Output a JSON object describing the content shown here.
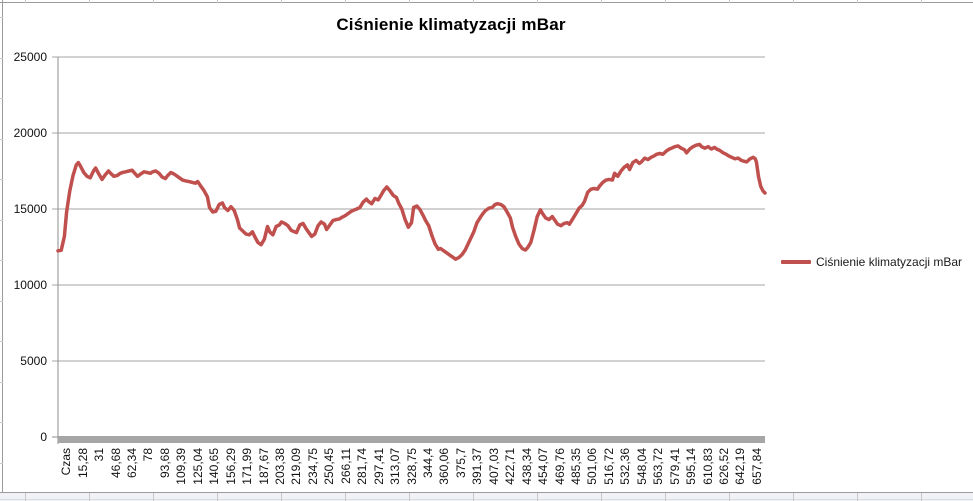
{
  "chart": {
    "title": "Ciśnienie klimatyzacji mBar",
    "legend_label": "Ciśnienie klimatyzacji mBar",
    "series_color": "#C0504D",
    "gridline_color": "#A6A6A6",
    "axis_color": "#8C8C8C",
    "axis_bar_color": "#A6A6A6"
  },
  "chart_data": {
    "type": "line",
    "title": "Ciśnienie klimatyzacji mBar",
    "xlabel": "",
    "ylabel": "",
    "grid": "horizontal",
    "legend_position": "right",
    "legend": [
      "Ciśnienie klimatyzacji mBar"
    ],
    "y_axis": {
      "min": 0,
      "max": 25000,
      "tick_interval": 5000,
      "ticks": [
        0,
        5000,
        10000,
        15000,
        20000,
        25000
      ]
    },
    "x_axis": {
      "tick_labels": [
        "Czas",
        "15,28",
        "31",
        "46,68",
        "62,34",
        "78",
        "93,68",
        "109,39",
        "125,04",
        "140,65",
        "156,29",
        "171,99",
        "187,67",
        "203,38",
        "219,09",
        "234,75",
        "250,45",
        "266,11",
        "281,74",
        "297,41",
        "313,07",
        "328,75",
        "344,4",
        "360,06",
        "375,7",
        "391,37",
        "407,03",
        "422,71",
        "438,34",
        "454,07",
        "469,76",
        "485,35",
        "501,06",
        "516,72",
        "532,36",
        "548,04",
        "563,72",
        "579,41",
        "595,14",
        "610,83",
        "626,52",
        "642,19",
        "657,84"
      ],
      "range": [
        0,
        658
      ]
    },
    "series": [
      {
        "name": "Ciśnienie klimatyzacji mBar",
        "color": "#C0504D",
        "points_time_value": [
          [
            0,
            12250
          ],
          [
            3,
            12280
          ],
          [
            6,
            13200
          ],
          [
            8,
            14800
          ],
          [
            11,
            16200
          ],
          [
            14,
            17200
          ],
          [
            17,
            17900
          ],
          [
            19,
            18050
          ],
          [
            21,
            17800
          ],
          [
            24,
            17400
          ],
          [
            27,
            17150
          ],
          [
            30,
            17050
          ],
          [
            33,
            17500
          ],
          [
            35,
            17700
          ],
          [
            38,
            17300
          ],
          [
            41,
            16950
          ],
          [
            44,
            17250
          ],
          [
            47,
            17500
          ],
          [
            49,
            17350
          ],
          [
            52,
            17150
          ],
          [
            55,
            17200
          ],
          [
            58,
            17350
          ],
          [
            60,
            17400
          ],
          [
            63,
            17450
          ],
          [
            66,
            17500
          ],
          [
            69,
            17550
          ],
          [
            72,
            17300
          ],
          [
            74,
            17150
          ],
          [
            77,
            17300
          ],
          [
            80,
            17450
          ],
          [
            83,
            17400
          ],
          [
            86,
            17350
          ],
          [
            88,
            17450
          ],
          [
            91,
            17500
          ],
          [
            94,
            17350
          ],
          [
            97,
            17100
          ],
          [
            100,
            17000
          ],
          [
            102,
            17200
          ],
          [
            105,
            17400
          ],
          [
            108,
            17300
          ],
          [
            111,
            17150
          ],
          [
            114,
            17000
          ],
          [
            116,
            16900
          ],
          [
            119,
            16850
          ],
          [
            122,
            16800
          ],
          [
            125,
            16750
          ],
          [
            128,
            16700
          ],
          [
            130,
            16800
          ],
          [
            133,
            16500
          ],
          [
            136,
            16200
          ],
          [
            139,
            15800
          ],
          [
            141,
            15100
          ],
          [
            144,
            14800
          ],
          [
            147,
            14850
          ],
          [
            150,
            15300
          ],
          [
            153,
            15400
          ],
          [
            155,
            15100
          ],
          [
            158,
            14900
          ],
          [
            161,
            15150
          ],
          [
            164,
            14900
          ],
          [
            167,
            14300
          ],
          [
            169,
            13750
          ],
          [
            172,
            13550
          ],
          [
            175,
            13350
          ],
          [
            178,
            13300
          ],
          [
            181,
            13500
          ],
          [
            183,
            13200
          ],
          [
            186,
            12800
          ],
          [
            189,
            12650
          ],
          [
            192,
            13000
          ],
          [
            195,
            13850
          ],
          [
            197,
            13500
          ],
          [
            200,
            13300
          ],
          [
            203,
            13850
          ],
          [
            206,
            13950
          ],
          [
            208,
            14150
          ],
          [
            211,
            14050
          ],
          [
            214,
            13900
          ],
          [
            217,
            13600
          ],
          [
            220,
            13500
          ],
          [
            222,
            13450
          ],
          [
            225,
            13950
          ],
          [
            228,
            14050
          ],
          [
            231,
            13700
          ],
          [
            234,
            13400
          ],
          [
            236,
            13200
          ],
          [
            239,
            13350
          ],
          [
            242,
            13900
          ],
          [
            245,
            14150
          ],
          [
            248,
            14000
          ],
          [
            250,
            13650
          ],
          [
            253,
            13950
          ],
          [
            256,
            14250
          ],
          [
            259,
            14300
          ],
          [
            262,
            14350
          ],
          [
            264,
            14450
          ],
          [
            267,
            14550
          ],
          [
            270,
            14700
          ],
          [
            273,
            14850
          ],
          [
            276,
            14950
          ],
          [
            278,
            15000
          ],
          [
            281,
            15100
          ],
          [
            284,
            15450
          ],
          [
            287,
            15650
          ],
          [
            289,
            15500
          ],
          [
            292,
            15350
          ],
          [
            295,
            15700
          ],
          [
            298,
            15600
          ],
          [
            301,
            15950
          ],
          [
            303,
            16200
          ],
          [
            306,
            16450
          ],
          [
            309,
            16200
          ],
          [
            312,
            15900
          ],
          [
            315,
            15750
          ],
          [
            317,
            15400
          ],
          [
            320,
            15000
          ],
          [
            323,
            14300
          ],
          [
            326,
            13800
          ],
          [
            329,
            14100
          ],
          [
            331,
            15100
          ],
          [
            334,
            15200
          ],
          [
            337,
            14950
          ],
          [
            340,
            14550
          ],
          [
            342,
            14250
          ],
          [
            345,
            13900
          ],
          [
            348,
            13250
          ],
          [
            351,
            12700
          ],
          [
            354,
            12350
          ],
          [
            356,
            12400
          ],
          [
            359,
            12250
          ],
          [
            362,
            12100
          ],
          [
            365,
            11950
          ],
          [
            368,
            11800
          ],
          [
            370,
            11700
          ],
          [
            373,
            11800
          ],
          [
            376,
            12000
          ],
          [
            379,
            12300
          ],
          [
            382,
            12750
          ],
          [
            384,
            13050
          ],
          [
            387,
            13500
          ],
          [
            390,
            14100
          ],
          [
            393,
            14450
          ],
          [
            396,
            14750
          ],
          [
            398,
            14900
          ],
          [
            401,
            15050
          ],
          [
            404,
            15100
          ],
          [
            407,
            15300
          ],
          [
            409,
            15350
          ],
          [
            412,
            15300
          ],
          [
            415,
            15150
          ],
          [
            418,
            14800
          ],
          [
            421,
            14400
          ],
          [
            423,
            13800
          ],
          [
            426,
            13200
          ],
          [
            429,
            12700
          ],
          [
            432,
            12400
          ],
          [
            435,
            12300
          ],
          [
            437,
            12450
          ],
          [
            440,
            12800
          ],
          [
            443,
            13600
          ],
          [
            446,
            14500
          ],
          [
            449,
            14950
          ],
          [
            451,
            14700
          ],
          [
            454,
            14400
          ],
          [
            457,
            14300
          ],
          [
            460,
            14500
          ],
          [
            462,
            14300
          ],
          [
            465,
            14000
          ],
          [
            468,
            13900
          ],
          [
            471,
            14050
          ],
          [
            474,
            14100
          ],
          [
            476,
            14000
          ],
          [
            479,
            14350
          ],
          [
            482,
            14700
          ],
          [
            485,
            15050
          ],
          [
            488,
            15250
          ],
          [
            490,
            15500
          ],
          [
            493,
            16100
          ],
          [
            496,
            16300
          ],
          [
            499,
            16350
          ],
          [
            502,
            16300
          ],
          [
            504,
            16500
          ],
          [
            507,
            16750
          ],
          [
            510,
            16900
          ],
          [
            513,
            16950
          ],
          [
            516,
            16900
          ],
          [
            518,
            17350
          ],
          [
            521,
            17150
          ],
          [
            524,
            17500
          ],
          [
            527,
            17750
          ],
          [
            530,
            17900
          ],
          [
            532,
            17600
          ],
          [
            535,
            18050
          ],
          [
            538,
            18200
          ],
          [
            541,
            18000
          ],
          [
            543,
            18100
          ],
          [
            546,
            18350
          ],
          [
            549,
            18250
          ],
          [
            552,
            18400
          ],
          [
            555,
            18500
          ],
          [
            557,
            18600
          ],
          [
            560,
            18650
          ],
          [
            563,
            18600
          ],
          [
            566,
            18800
          ],
          [
            569,
            18950
          ],
          [
            571,
            19000
          ],
          [
            574,
            19100
          ],
          [
            577,
            19150
          ],
          [
            580,
            19000
          ],
          [
            583,
            18900
          ],
          [
            585,
            18700
          ],
          [
            588,
            18950
          ],
          [
            591,
            19100
          ],
          [
            594,
            19200
          ],
          [
            597,
            19250
          ],
          [
            599,
            19100
          ],
          [
            602,
            19000
          ],
          [
            605,
            19100
          ],
          [
            608,
            18950
          ],
          [
            611,
            19050
          ],
          [
            613,
            18950
          ],
          [
            616,
            18850
          ],
          [
            619,
            18700
          ],
          [
            622,
            18600
          ],
          [
            624,
            18500
          ],
          [
            627,
            18400
          ],
          [
            630,
            18300
          ],
          [
            633,
            18350
          ],
          [
            636,
            18200
          ],
          [
            638,
            18150
          ],
          [
            641,
            18100
          ],
          [
            644,
            18300
          ],
          [
            647,
            18400
          ],
          [
            649,
            18300
          ],
          [
            650,
            18100
          ],
          [
            652,
            17100
          ],
          [
            654,
            16500
          ],
          [
            656,
            16200
          ],
          [
            658,
            16050
          ]
        ]
      }
    ]
  }
}
